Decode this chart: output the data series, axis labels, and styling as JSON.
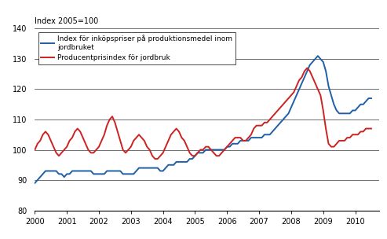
{
  "title_ylabel": "Index 2005=100",
  "ylim": [
    80,
    140
  ],
  "xlim": [
    2000.0,
    2010.75
  ],
  "yticks": [
    80,
    90,
    100,
    110,
    120,
    130,
    140
  ],
  "xticks": [
    2000,
    2001,
    2002,
    2003,
    2004,
    2005,
    2006,
    2007,
    2008,
    2009,
    2010
  ],
  "blue_color": "#1F5FA6",
  "red_color": "#CC2222",
  "legend1": "Index för inköpspriser på produktionsmedel inom\njordbruket",
  "legend2": "Producentprisindex för jordbruk",
  "blue_x": [
    2000.0,
    2000.083,
    2000.167,
    2000.25,
    2000.333,
    2000.417,
    2000.5,
    2000.583,
    2000.667,
    2000.75,
    2000.833,
    2000.917,
    2001.0,
    2001.083,
    2001.167,
    2001.25,
    2001.333,
    2001.417,
    2001.5,
    2001.583,
    2001.667,
    2001.75,
    2001.833,
    2001.917,
    2002.0,
    2002.083,
    2002.167,
    2002.25,
    2002.333,
    2002.417,
    2002.5,
    2002.583,
    2002.667,
    2002.75,
    2002.833,
    2002.917,
    2003.0,
    2003.083,
    2003.167,
    2003.25,
    2003.333,
    2003.417,
    2003.5,
    2003.583,
    2003.667,
    2003.75,
    2003.833,
    2003.917,
    2004.0,
    2004.083,
    2004.167,
    2004.25,
    2004.333,
    2004.417,
    2004.5,
    2004.583,
    2004.667,
    2004.75,
    2004.833,
    2004.917,
    2005.0,
    2005.083,
    2005.167,
    2005.25,
    2005.333,
    2005.417,
    2005.5,
    2005.583,
    2005.667,
    2005.75,
    2005.833,
    2005.917,
    2006.0,
    2006.083,
    2006.167,
    2006.25,
    2006.333,
    2006.417,
    2006.5,
    2006.583,
    2006.667,
    2006.75,
    2006.833,
    2006.917,
    2007.0,
    2007.083,
    2007.167,
    2007.25,
    2007.333,
    2007.417,
    2007.5,
    2007.583,
    2007.667,
    2007.75,
    2007.833,
    2007.917,
    2008.0,
    2008.083,
    2008.167,
    2008.25,
    2008.333,
    2008.417,
    2008.5,
    2008.583,
    2008.667,
    2008.75,
    2008.833,
    2008.917,
    2009.0,
    2009.083,
    2009.167,
    2009.25,
    2009.333,
    2009.417,
    2009.5,
    2009.583,
    2009.667,
    2009.75,
    2009.833,
    2009.917,
    2010.0,
    2010.083,
    2010.167,
    2010.25,
    2010.333,
    2010.417,
    2010.5
  ],
  "blue_y": [
    89,
    90,
    91,
    92,
    93,
    93,
    93,
    93,
    93,
    92,
    92,
    91,
    92,
    92,
    93,
    93,
    93,
    93,
    93,
    93,
    93,
    93,
    92,
    92,
    92,
    92,
    92,
    93,
    93,
    93,
    93,
    93,
    93,
    92,
    92,
    92,
    92,
    92,
    93,
    94,
    94,
    94,
    94,
    94,
    94,
    94,
    94,
    93,
    93,
    94,
    95,
    95,
    95,
    96,
    96,
    96,
    96,
    96,
    97,
    97,
    98,
    99,
    99,
    99,
    100,
    100,
    100,
    100,
    100,
    100,
    100,
    100,
    101,
    101,
    102,
    102,
    102,
    103,
    103,
    103,
    103,
    104,
    104,
    104,
    104,
    104,
    105,
    105,
    105,
    106,
    107,
    108,
    109,
    110,
    111,
    112,
    114,
    116,
    118,
    120,
    122,
    124,
    126,
    128,
    129,
    130,
    131,
    130,
    129,
    126,
    121,
    118,
    115,
    113,
    112,
    112,
    112,
    112,
    112,
    113,
    113,
    114,
    115,
    115,
    116,
    117,
    117
  ],
  "red_x": [
    2000.0,
    2000.083,
    2000.167,
    2000.25,
    2000.333,
    2000.417,
    2000.5,
    2000.583,
    2000.667,
    2000.75,
    2000.833,
    2000.917,
    2001.0,
    2001.083,
    2001.167,
    2001.25,
    2001.333,
    2001.417,
    2001.5,
    2001.583,
    2001.667,
    2001.75,
    2001.833,
    2001.917,
    2002.0,
    2002.083,
    2002.167,
    2002.25,
    2002.333,
    2002.417,
    2002.5,
    2002.583,
    2002.667,
    2002.75,
    2002.833,
    2002.917,
    2003.0,
    2003.083,
    2003.167,
    2003.25,
    2003.333,
    2003.417,
    2003.5,
    2003.583,
    2003.667,
    2003.75,
    2003.833,
    2003.917,
    2004.0,
    2004.083,
    2004.167,
    2004.25,
    2004.333,
    2004.417,
    2004.5,
    2004.583,
    2004.667,
    2004.75,
    2004.833,
    2004.917,
    2005.0,
    2005.083,
    2005.167,
    2005.25,
    2005.333,
    2005.417,
    2005.5,
    2005.583,
    2005.667,
    2005.75,
    2005.833,
    2005.917,
    2006.0,
    2006.083,
    2006.167,
    2006.25,
    2006.333,
    2006.417,
    2006.5,
    2006.583,
    2006.667,
    2006.75,
    2006.833,
    2006.917,
    2007.0,
    2007.083,
    2007.167,
    2007.25,
    2007.333,
    2007.417,
    2007.5,
    2007.583,
    2007.667,
    2007.75,
    2007.833,
    2007.917,
    2008.0,
    2008.083,
    2008.167,
    2008.25,
    2008.333,
    2008.417,
    2008.5,
    2008.583,
    2008.667,
    2008.75,
    2008.833,
    2008.917,
    2009.0,
    2009.083,
    2009.167,
    2009.25,
    2009.333,
    2009.417,
    2009.5,
    2009.583,
    2009.667,
    2009.75,
    2009.833,
    2009.917,
    2010.0,
    2010.083,
    2010.167,
    2010.25,
    2010.333,
    2010.417,
    2010.5
  ],
  "red_y": [
    100,
    102,
    103,
    105,
    106,
    105,
    103,
    101,
    99,
    98,
    99,
    100,
    101,
    103,
    104,
    106,
    107,
    106,
    104,
    102,
    100,
    99,
    99,
    100,
    101,
    103,
    105,
    108,
    110,
    111,
    109,
    106,
    103,
    100,
    99,
    100,
    101,
    103,
    104,
    105,
    104,
    103,
    101,
    100,
    98,
    97,
    97,
    98,
    99,
    101,
    103,
    105,
    106,
    107,
    106,
    104,
    103,
    101,
    99,
    98,
    98,
    99,
    100,
    100,
    101,
    101,
    100,
    99,
    98,
    98,
    99,
    100,
    101,
    102,
    103,
    104,
    104,
    104,
    103,
    103,
    104,
    105,
    107,
    108,
    108,
    108,
    109,
    109,
    110,
    111,
    112,
    113,
    114,
    115,
    116,
    117,
    118,
    119,
    121,
    123,
    124,
    126,
    127,
    126,
    124,
    122,
    120,
    118,
    113,
    107,
    102,
    101,
    101,
    102,
    103,
    103,
    103,
    104,
    104,
    105,
    105,
    105,
    106,
    106,
    107,
    107,
    107
  ],
  "figsize": [
    4.93,
    3.04
  ],
  "dpi": 100,
  "linewidth": 1.4,
  "tick_fontsize": 7,
  "ylabel_fontsize": 7,
  "legend_fontsize": 6.5
}
